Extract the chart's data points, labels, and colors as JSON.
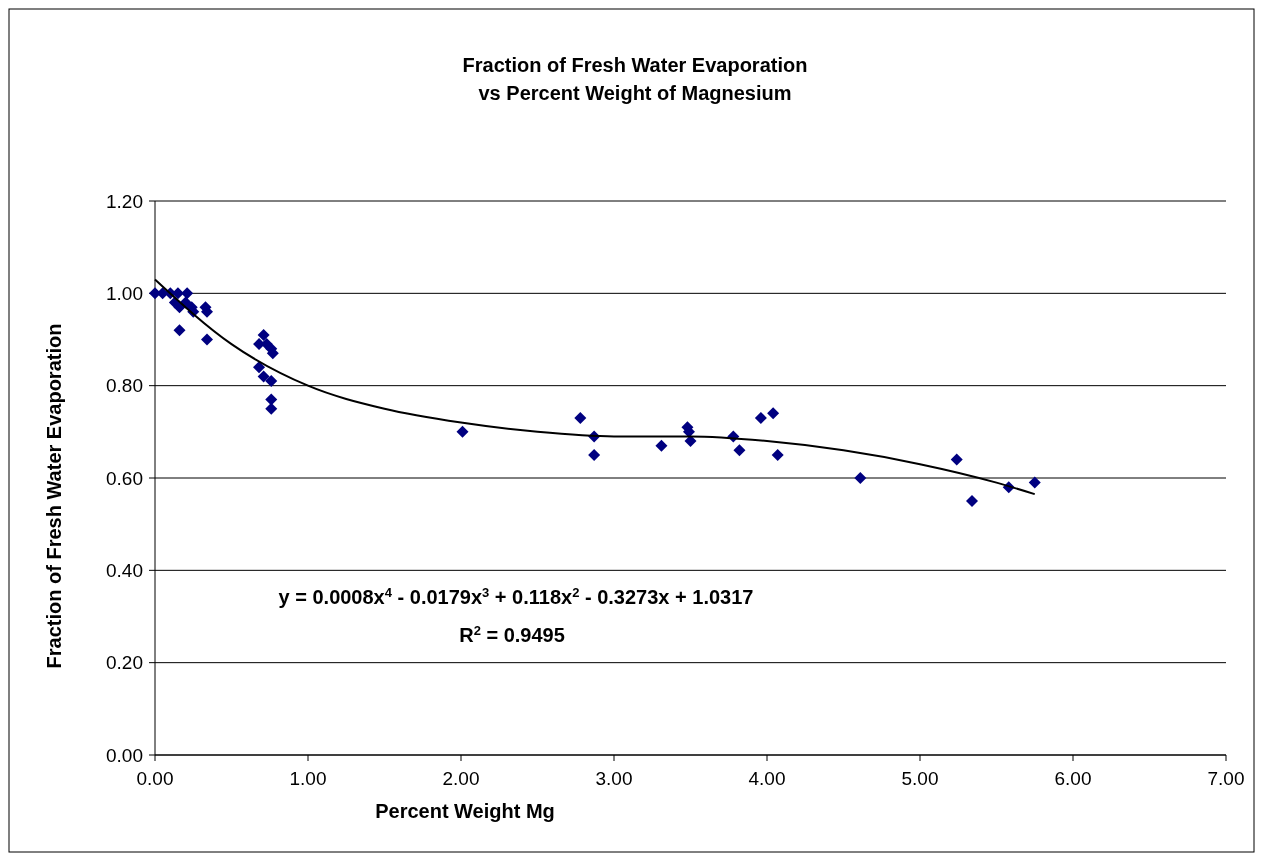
{
  "chart_data": {
    "type": "scatter",
    "title": "Fraction of Fresh Water Evaporation\nvs Percent Weight of Magnesium",
    "xlabel": "Percent Weight Mg",
    "ylabel": "Fraction of Fresh Water Evaporation",
    "xlim": [
      0,
      7
    ],
    "xticks": [
      {
        "value": 0,
        "label": "0.00"
      },
      {
        "value": 1,
        "label": "1.00"
      },
      {
        "value": 2,
        "label": "2.00"
      },
      {
        "value": 3,
        "label": "3.00"
      },
      {
        "value": 4,
        "label": "4.00"
      },
      {
        "value": 5,
        "label": "5.00"
      },
      {
        "value": 6,
        "label": "6.00"
      },
      {
        "value": 7,
        "label": "7.00"
      }
    ],
    "ylim": [
      0,
      1.2
    ],
    "yticks": [
      {
        "value": 0,
        "label": "0.00"
      },
      {
        "value": 0.2,
        "label": "0.20"
      },
      {
        "value": 0.4,
        "label": "0.40"
      },
      {
        "value": 0.6,
        "label": "0.60"
      },
      {
        "value": 0.8,
        "label": "0.80"
      },
      {
        "value": 1,
        "label": "1.00"
      },
      {
        "value": 1.2,
        "label": "1.20"
      }
    ],
    "grid": "y",
    "marker": "diamond",
    "annotations": [
      "y = 0.0008x$^{4}$ - 0.0179x$^{3}$ + 0.118x$^{2}$ - 0.3273x + 1.0317",
      "R$^{2}$ = 0.9495"
    ],
    "series": [
      {
        "color": "#000080",
        "x": [
          0.0,
          0.05,
          0.1,
          0.15,
          0.13,
          0.16,
          0.21,
          0.2,
          0.16,
          0.24,
          0.25,
          0.33,
          0.34,
          0.34,
          0.68,
          0.71,
          0.73,
          0.76,
          0.77,
          0.68,
          0.71,
          0.76,
          0.76,
          0.76,
          2.01,
          2.78,
          2.87,
          2.87,
          3.31,
          3.48,
          3.49,
          3.5,
          3.78,
          3.82,
          3.96,
          4.04,
          4.07,
          4.61,
          5.24,
          5.34,
          5.58,
          5.75
        ],
        "values": [
          1.0,
          1.0,
          1.0,
          1.0,
          0.98,
          0.97,
          1.0,
          0.98,
          0.92,
          0.97,
          0.96,
          0.97,
          0.96,
          0.9,
          0.89,
          0.91,
          0.89,
          0.88,
          0.87,
          0.84,
          0.82,
          0.81,
          0.77,
          0.75,
          0.7,
          0.73,
          0.69,
          0.65,
          0.67,
          0.71,
          0.7,
          0.68,
          0.69,
          0.66,
          0.73,
          0.74,
          0.65,
          0.6,
          0.64,
          0.55,
          0.58,
          0.59
        ]
      },
      {
        "type": "line",
        "color": "#000000",
        "marker": "none",
        "x": [
          0,
          0.5,
          1,
          1.5,
          2,
          2.5,
          3,
          3.5,
          4,
          4.5,
          5,
          5.5,
          5.75
        ],
        "values": [
          1.03,
          0.89,
          0.8,
          0.75,
          0.72,
          0.7,
          0.69,
          0.69,
          0.68,
          0.66,
          0.63,
          0.59,
          0.565
        ]
      }
    ]
  }
}
